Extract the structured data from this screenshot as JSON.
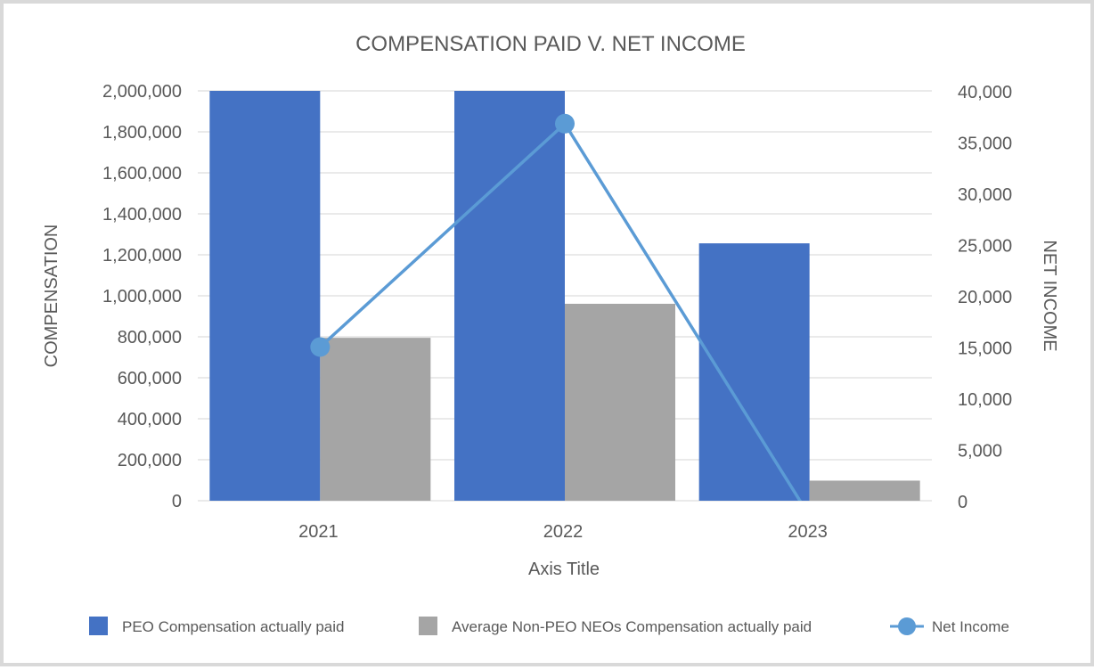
{
  "chart_data": {
    "type": "bar",
    "combo": "clustered bar + line (secondary axis)",
    "title": "COMPENSATION PAID V. NET INCOME",
    "xlabel": "Axis Title",
    "ylabel": "COMPENSATION",
    "y2label": "NET INCOME",
    "categories": [
      "2021",
      "2022",
      "2023"
    ],
    "ylim": [
      0,
      2000000
    ],
    "y_ticks": [
      "0",
      "200,000",
      "400,000",
      "600,000",
      "800,000",
      "1,000,000",
      "1,200,000",
      "1,400,000",
      "1,600,000",
      "1,800,000",
      "2,000,000"
    ],
    "y2lim": [
      0,
      40000
    ],
    "y2_ticks": [
      "0",
      "5,000",
      "10,000",
      "15,000",
      "20,000",
      "25,000",
      "30,000",
      "35,000",
      "40,000"
    ],
    "grid": true,
    "legend_position": "bottom",
    "series": [
      {
        "name": "PEO Compensation actually paid",
        "type": "bar",
        "axis": "primary",
        "color": "#4472c4",
        "values": [
          2000000,
          2000000,
          1256000
        ],
        "note": "2021 and 2022 bars are clipped at the 2,000,000 axis maximum"
      },
      {
        "name": "Average Non-PEO NEOs Compensation actually paid",
        "type": "bar",
        "axis": "primary",
        "color": "#a5a5a5",
        "values": [
          795000,
          961000,
          98000
        ]
      },
      {
        "name": "Net Income",
        "type": "line",
        "axis": "secondary",
        "color": "#5b9bd5",
        "marker": "circle",
        "values": [
          15000,
          36800,
          -1500
        ],
        "note": "2023 value falls below 0 and is clipped at the axis minimum"
      }
    ]
  },
  "labels": {
    "title": "COMPENSATION PAID V. NET INCOME",
    "xlabel": "Axis Title",
    "ylabel": "COMPENSATION",
    "y2label": "NET INCOME"
  },
  "legend": [
    {
      "label": "PEO Compensation actually paid",
      "color": "#4472c4",
      "kind": "square"
    },
    {
      "label": "Average Non-PEO NEOs Compensation actually paid",
      "color": "#a5a5a5",
      "kind": "square"
    },
    {
      "label": "Net Income",
      "color": "#5b9bd5",
      "kind": "line-marker"
    }
  ]
}
